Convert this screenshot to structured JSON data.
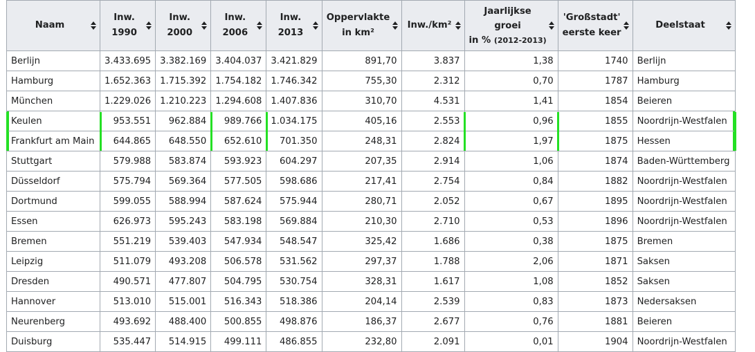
{
  "columns": [
    {
      "label1": "Naam",
      "label2": "",
      "small": ""
    },
    {
      "label1": "Inw.",
      "label2": "1990",
      "small": ""
    },
    {
      "label1": "Inw.",
      "label2": "2000",
      "small": ""
    },
    {
      "label1": "Inw.",
      "label2": "2006",
      "small": ""
    },
    {
      "label1": "Inw.",
      "label2": "2013",
      "small": ""
    },
    {
      "label1": "Oppervlakte",
      "label2": "in km²",
      "small": ""
    },
    {
      "label1": "Inw./km²",
      "label2": "",
      "small": ""
    },
    {
      "label1": "Jaarlijkse",
      "label2": "groei",
      "label3": "in %",
      "small": "(2012-2013)"
    },
    {
      "label1": "'Großstadt'",
      "label2": "eerste keer",
      "small": ""
    },
    {
      "label1": "Deelstaat",
      "label2": "",
      "small": ""
    }
  ],
  "rows": [
    [
      "Berlijn",
      "3.433.695",
      "3.382.169",
      "3.404.037",
      "3.421.829",
      "891,70",
      "3.837",
      "1,38",
      "1740",
      "Berlijn"
    ],
    [
      "Hamburg",
      "1.652.363",
      "1.715.392",
      "1.754.182",
      "1.746.342",
      "755,30",
      "2.312",
      "0,70",
      "1787",
      "Hamburg"
    ],
    [
      "München",
      "1.229.026",
      "1.210.223",
      "1.294.608",
      "1.407.836",
      "310,70",
      "4.531",
      "1,41",
      "1854",
      "Beieren"
    ],
    [
      "Keulen",
      "953.551",
      "962.884",
      "989.766",
      "1.034.175",
      "405,16",
      "2.553",
      "0,96",
      "1855",
      "Noordrijn-Westfalen"
    ],
    [
      "Frankfurt am Main",
      "644.865",
      "648.550",
      "652.610",
      "701.350",
      "248,31",
      "2.824",
      "1,97",
      "1875",
      "Hessen"
    ],
    [
      "Stuttgart",
      "579.988",
      "583.874",
      "593.923",
      "604.297",
      "207,35",
      "2.914",
      "1,06",
      "1874",
      "Baden-Württemberg"
    ],
    [
      "Düsseldorf",
      "575.794",
      "569.364",
      "577.505",
      "598.686",
      "217,41",
      "2.754",
      "0,84",
      "1882",
      "Noordrijn-Westfalen"
    ],
    [
      "Dortmund",
      "599.055",
      "588.994",
      "587.624",
      "575.944",
      "280,71",
      "2.052",
      "0,67",
      "1895",
      "Noordrijn-Westfalen"
    ],
    [
      "Essen",
      "626.973",
      "595.243",
      "583.198",
      "569.884",
      "210,30",
      "2.710",
      "0,53",
      "1896",
      "Noordrijn-Westfalen"
    ],
    [
      "Bremen",
      "551.219",
      "539.403",
      "547.934",
      "548.547",
      "325,42",
      "1.686",
      "0,38",
      "1875",
      "Bremen"
    ],
    [
      "Leipzig",
      "511.079",
      "493.208",
      "506.578",
      "531.562",
      "297,37",
      "1.788",
      "2,06",
      "1871",
      "Saksen"
    ],
    [
      "Dresden",
      "490.571",
      "477.807",
      "504.795",
      "530.754",
      "328,31",
      "1.617",
      "1,08",
      "1852",
      "Saksen"
    ],
    [
      "Hannover",
      "513.010",
      "515.001",
      "516.343",
      "518.386",
      "204,14",
      "2.539",
      "0,83",
      "1873",
      "Nedersaksen"
    ],
    [
      "Neurenberg",
      "493.692",
      "488.400",
      "500.855",
      "498.876",
      "186,37",
      "2.677",
      "0,76",
      "1881",
      "Beieren"
    ],
    [
      "Duisburg",
      "535.447",
      "514.915",
      "499.111",
      "486.855",
      "232,80",
      "2.091",
      "0,01",
      "1904",
      "Noordrijn-Westfalen"
    ]
  ],
  "highlight_color": "#24e024",
  "highlighted_rows": [
    "Keulen",
    "Frankfurt am Main"
  ],
  "header_bg": "#eaecf0",
  "border_color": "#a2a9b1"
}
